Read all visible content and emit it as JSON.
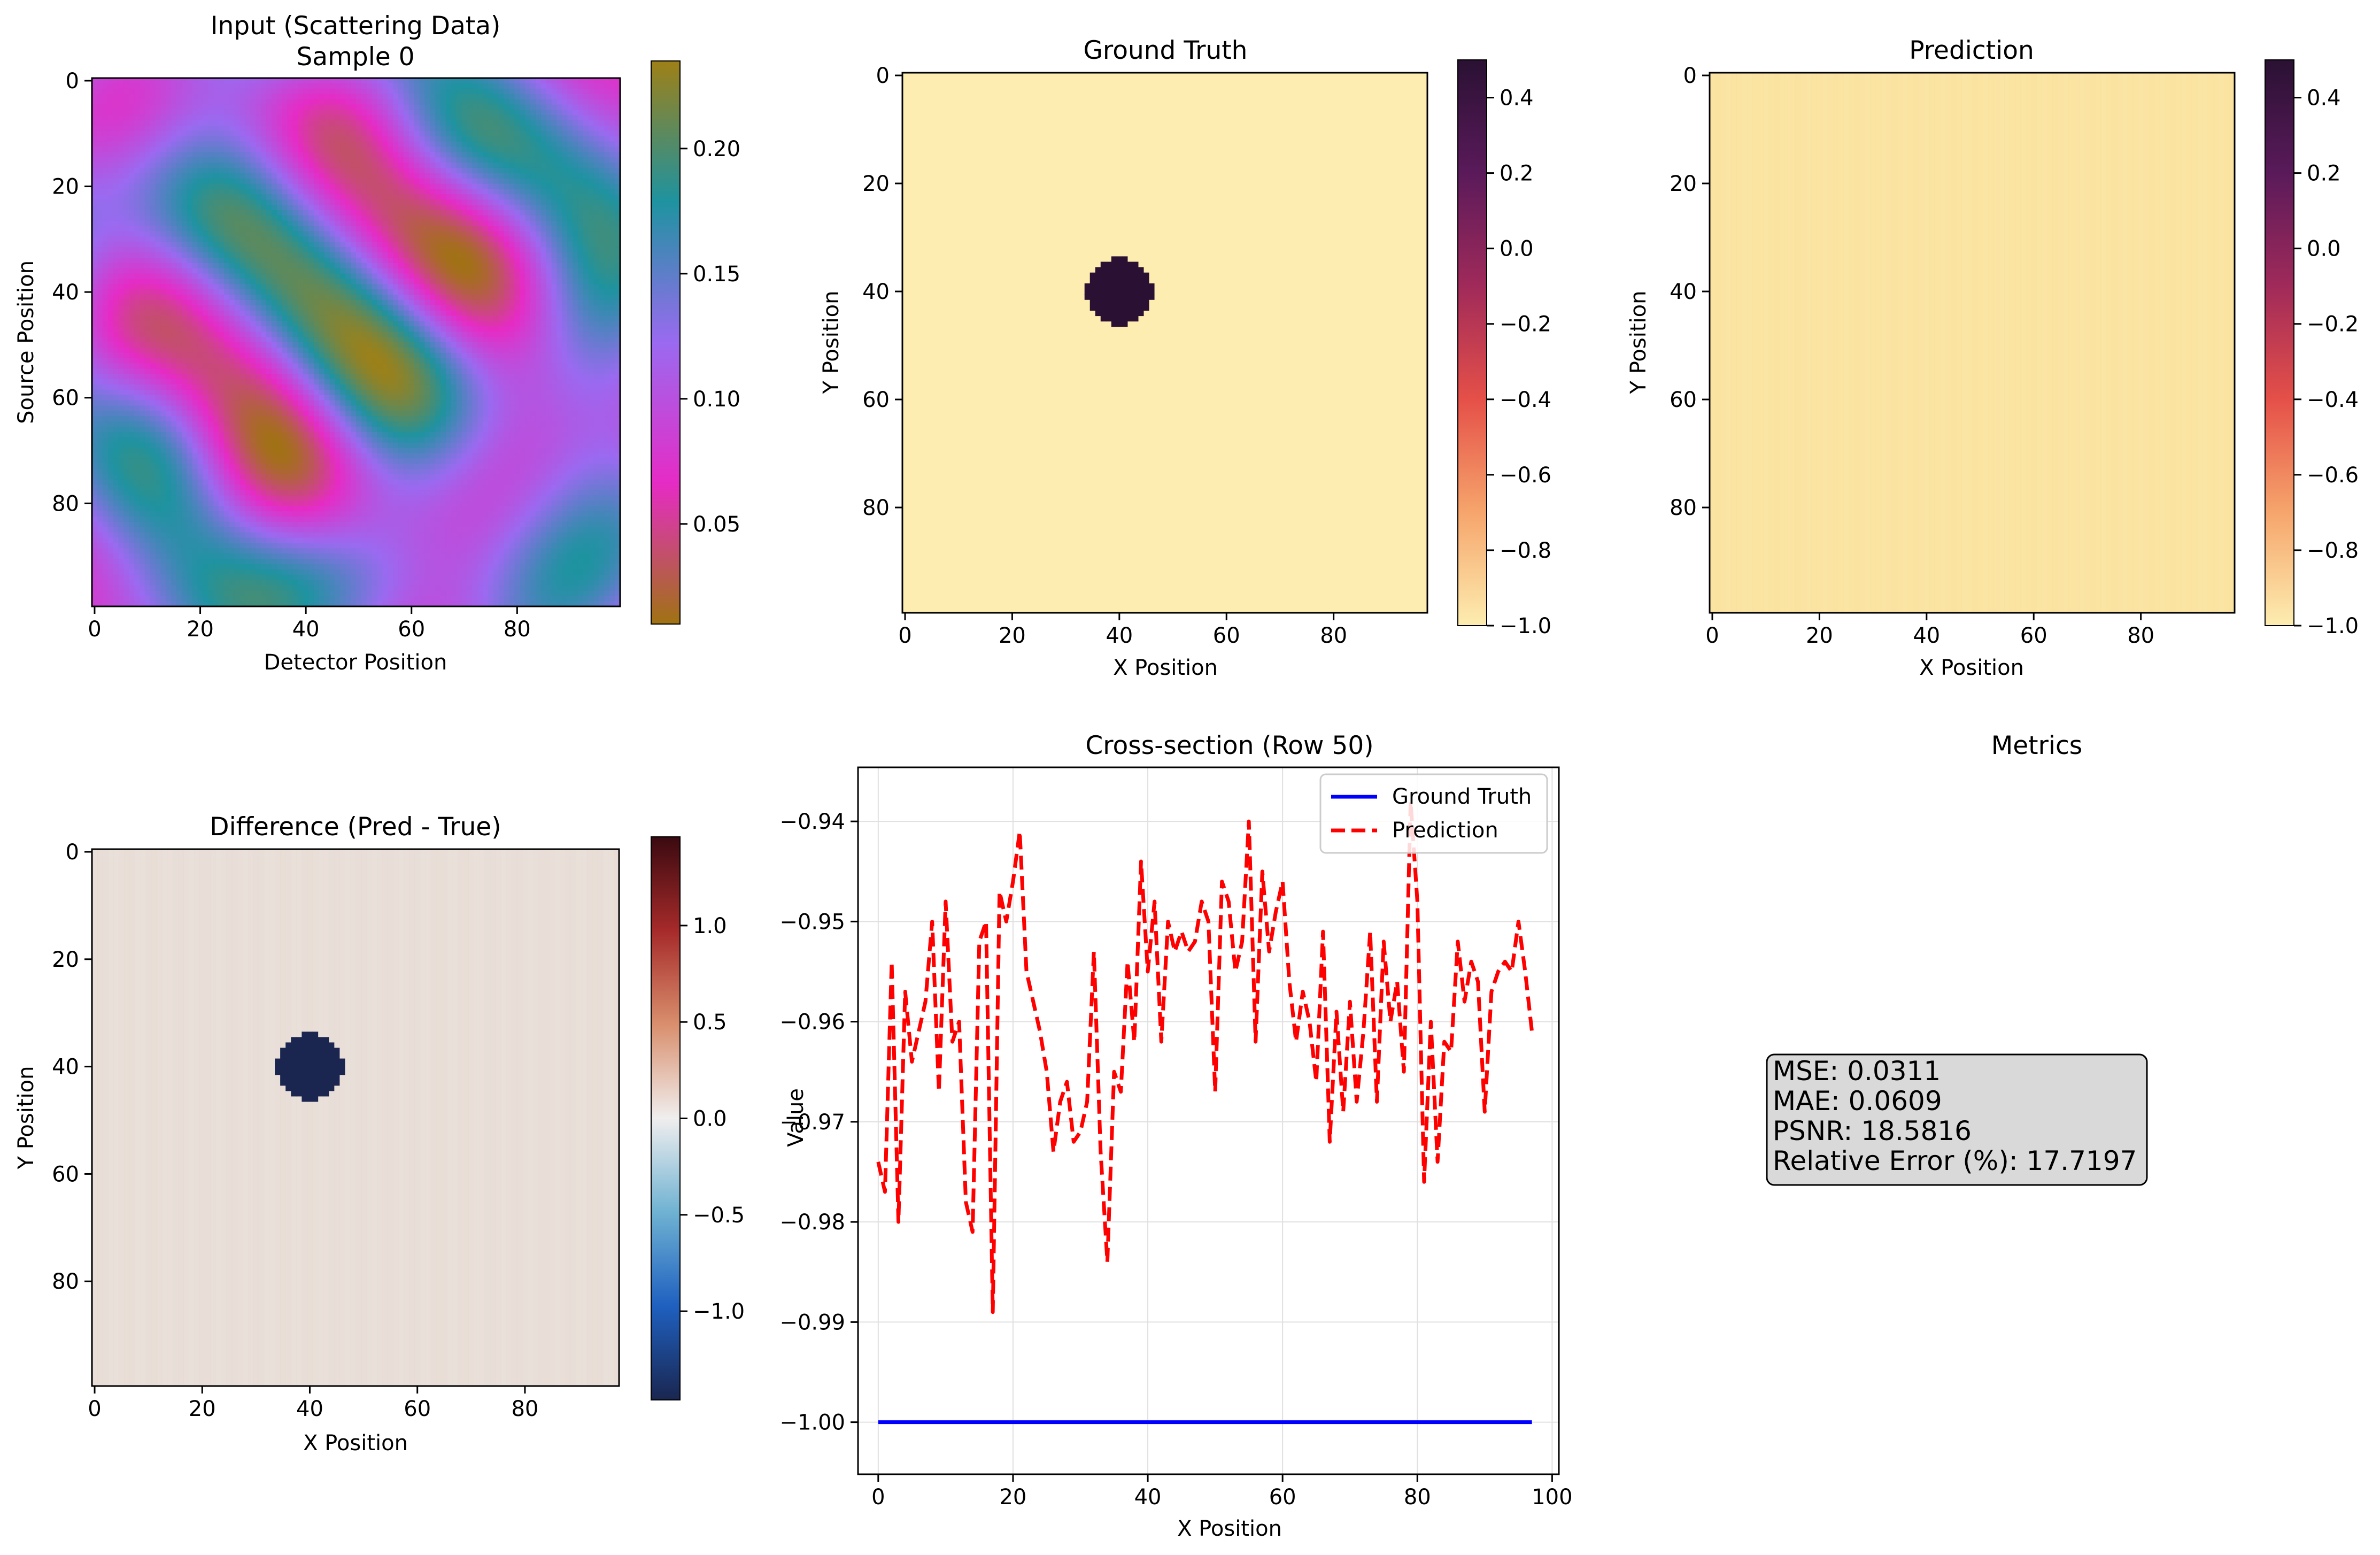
{
  "chart_data": [
    {
      "type": "heatmap",
      "title": "Input (Scattering Data)",
      "subtitle": "Sample 0",
      "xlabel": "Detector Position",
      "ylabel": "Source Position",
      "xticks": [
        "0",
        "20",
        "40",
        "60",
        "80"
      ],
      "yticks": [
        "0",
        "20",
        "40",
        "60",
        "80"
      ],
      "grid_size": [
        100,
        100
      ],
      "colorbar": {
        "ticks": [
          "0.05",
          "0.10",
          "0.15",
          "0.20"
        ],
        "range": [
          0.01,
          0.235
        ],
        "colormap": [
          "#a07312",
          "#e62bc5",
          "#9a6af0",
          "#1e93a0",
          "#9e8017"
        ]
      }
    },
    {
      "type": "heatmap",
      "title": "Ground Truth",
      "xlabel": "X Position",
      "ylabel": "Y Position",
      "xticks": [
        "0",
        "20",
        "40",
        "60",
        "80"
      ],
      "yticks": [
        "0",
        "20",
        "40",
        "60",
        "80"
      ],
      "grid_size": [
        98,
        100
      ],
      "background_value": -1.0,
      "inclusion": {
        "center": [
          40,
          40
        ],
        "radius": 6,
        "value": 0.5
      },
      "colorbar": {
        "ticks": [
          "0.4",
          "0.2",
          "0.0",
          "−0.2",
          "−0.4",
          "−0.6",
          "−0.8",
          "−1.0"
        ],
        "range": [
          -1.0,
          0.5
        ],
        "colormap": [
          "#fdedb0",
          "#f6a56c",
          "#e55048",
          "#a02a5a",
          "#5a1a5a",
          "#2a1133"
        ]
      }
    },
    {
      "type": "heatmap",
      "title": "Prediction",
      "xlabel": "X Position",
      "ylabel": "Y Position",
      "xticks": [
        "0",
        "20",
        "40",
        "60",
        "80"
      ],
      "yticks": [
        "0",
        "20",
        "40",
        "60",
        "80"
      ],
      "grid_size": [
        98,
        100
      ],
      "approx_value": -0.96,
      "colorbar": {
        "ticks": [
          "0.4",
          "0.2",
          "0.0",
          "−0.2",
          "−0.4",
          "−0.6",
          "−0.8",
          "−1.0"
        ],
        "range": [
          -1.0,
          0.5
        ],
        "colormap": [
          "#fdedb0",
          "#f6a56c",
          "#e55048",
          "#a02a5a",
          "#5a1a5a",
          "#2a1133"
        ]
      }
    },
    {
      "type": "heatmap",
      "title": "Difference (Pred - True)",
      "xlabel": "X Position",
      "ylabel": "Y Position",
      "xticks": [
        "0",
        "20",
        "40",
        "60",
        "80"
      ],
      "yticks": [
        "0",
        "20",
        "40",
        "60",
        "80"
      ],
      "grid_size": [
        98,
        100
      ],
      "approx_value": 0.04,
      "inclusion": {
        "center": [
          40,
          40
        ],
        "radius": 6,
        "value": -1.46
      },
      "colorbar": {
        "ticks": [
          "1.0",
          "0.5",
          "0.0",
          "−0.5",
          "−1.0"
        ],
        "range": [
          -1.46,
          1.46
        ],
        "colormap": [
          "#1a2650",
          "#1f60c0",
          "#6fb2d2",
          "#f0eeee",
          "#d98f6d",
          "#a62a2a",
          "#3a0a10"
        ]
      }
    },
    {
      "type": "line",
      "title": "Cross-section (Row 50)",
      "xlabel": "X Position",
      "ylabel": "Value",
      "xlim": [
        -3,
        101
      ],
      "ylim": [
        -1.0052,
        -0.9346
      ],
      "xticks": [
        "0",
        "20",
        "40",
        "60",
        "80",
        "100"
      ],
      "yticks": [
        "−0.94",
        "−0.95",
        "−0.96",
        "−0.97",
        "−0.98",
        "−0.99",
        "−1.00"
      ],
      "grid": true,
      "legend_position": "top-right",
      "series": [
        {
          "name": "Ground Truth",
          "color": "#0000ff",
          "style": "solid",
          "x": [
            0,
            97
          ],
          "y": [
            -1.0,
            -1.0
          ]
        },
        {
          "name": "Prediction",
          "color": "#ff0000",
          "style": "dashed",
          "x": [
            0,
            1,
            2,
            3,
            4,
            5,
            6,
            7,
            8,
            9,
            10,
            11,
            12,
            13,
            14,
            15,
            16,
            17,
            18,
            19,
            20,
            21,
            22,
            23,
            24,
            25,
            26,
            27,
            28,
            29,
            30,
            31,
            32,
            33,
            34,
            35,
            36,
            37,
            38,
            39,
            40,
            41,
            42,
            43,
            44,
            45,
            46,
            47,
            48,
            49,
            50,
            51,
            52,
            53,
            54,
            55,
            56,
            57,
            58,
            59,
            60,
            61,
            62,
            63,
            64,
            65,
            66,
            67,
            68,
            69,
            70,
            71,
            72,
            73,
            74,
            75,
            76,
            77,
            78,
            79,
            80,
            81,
            82,
            83,
            84,
            85,
            86,
            87,
            88,
            89,
            90,
            91,
            92,
            93,
            94,
            95,
            96,
            97
          ],
          "y": [
            -0.974,
            -0.977,
            -0.954,
            -0.98,
            -0.957,
            -0.964,
            -0.961,
            -0.958,
            -0.95,
            -0.967,
            -0.948,
            -0.962,
            -0.96,
            -0.978,
            -0.981,
            -0.952,
            -0.95,
            -0.989,
            -0.947,
            -0.95,
            -0.946,
            -0.941,
            -0.955,
            -0.958,
            -0.961,
            -0.965,
            -0.973,
            -0.968,
            -0.966,
            -0.972,
            -0.971,
            -0.968,
            -0.953,
            -0.973,
            -0.984,
            -0.965,
            -0.967,
            -0.954,
            -0.962,
            -0.944,
            -0.955,
            -0.948,
            -0.962,
            -0.95,
            -0.953,
            -0.951,
            -0.953,
            -0.952,
            -0.948,
            -0.95,
            -0.967,
            -0.946,
            -0.948,
            -0.955,
            -0.952,
            -0.94,
            -0.962,
            -0.945,
            -0.953,
            -0.949,
            -0.946,
            -0.956,
            -0.962,
            -0.957,
            -0.96,
            -0.966,
            -0.951,
            -0.972,
            -0.959,
            -0.969,
            -0.958,
            -0.968,
            -0.961,
            -0.951,
            -0.968,
            -0.952,
            -0.96,
            -0.956,
            -0.965,
            -0.938,
            -0.948,
            -0.976,
            -0.96,
            -0.974,
            -0.962,
            -0.963,
            -0.952,
            -0.958,
            -0.954,
            -0.956,
            -0.969,
            -0.957,
            -0.955,
            -0.954,
            -0.955,
            -0.95,
            -0.955,
            -0.961
          ]
        }
      ]
    },
    {
      "type": "table",
      "title": "Metrics",
      "lines": [
        "MSE: 0.0311",
        "MAE: 0.0609",
        "PSNR: 18.5816",
        "Relative Error (%): 17.7197"
      ]
    }
  ],
  "colors": {
    "axis": "#000000",
    "grid": "#e0e0e0",
    "metrics_box_fill": "#d9d9d9"
  }
}
